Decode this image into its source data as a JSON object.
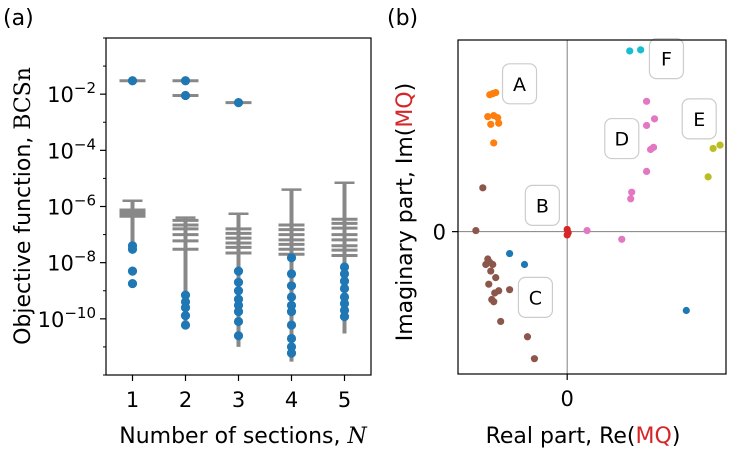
{
  "chart_data": [
    {
      "panel_label": "(a)",
      "type": "scatter",
      "subtype": "box-and-scatter, log y",
      "ylabel_prefix": "Objective function, ",
      "ylabel_math": "BCSn",
      "xlabel_prefix": "Number of sections, ",
      "xlabel_math": "N",
      "yscale": "log",
      "ylim": [
        1e-12,
        1
      ],
      "xlim": [
        0.5,
        5.5
      ],
      "x_ticks": [
        "1",
        "2",
        "3",
        "4",
        "5"
      ],
      "y_ticks": [
        {
          "value": 0.01,
          "base": "10",
          "exp": "−2"
        },
        {
          "value": 0.0001,
          "base": "10",
          "exp": "−4"
        },
        {
          "value": 1e-06,
          "base": "10",
          "exp": "−6"
        },
        {
          "value": 1e-08,
          "base": "10",
          "exp": "−8"
        },
        {
          "value": 1e-10,
          "base": "10",
          "exp": "−10"
        }
      ],
      "line_color": "#888888",
      "point_color": "#1f77b4",
      "groups": [
        {
          "x": 1,
          "whisker": [
            3e-08,
            1.6e-06
          ],
          "box_lines": [
            4.5e-07,
            5.5e-07,
            6.5e-07,
            7.5e-07
          ],
          "caps": [
            0.03
          ],
          "points": [
            0.03,
            4e-08,
            3e-08,
            5e-09,
            1.8e-09
          ]
        },
        {
          "x": 2,
          "whisker": [
            8e-11,
            4e-07
          ],
          "box_lines": [
            3.2e-07,
            2.2e-07,
            1.6e-07,
            1e-07,
            6e-08,
            3e-08
          ],
          "caps": [
            0.03,
            0.009
          ],
          "points": [
            0.03,
            0.009,
            7e-10,
            4e-10,
            2.5e-10,
            1.3e-10,
            6e-11
          ]
        },
        {
          "x": 3,
          "whisker": [
            1e-11,
            5.5e-07
          ],
          "box_lines": [
            1.6e-07,
            1.1e-07,
            7.5e-08,
            5e-08,
            3.5e-08,
            2.2e-08
          ],
          "caps": [
            0.005
          ],
          "points": [
            0.005,
            5e-09,
            2e-09,
            1e-09,
            5e-10,
            3e-10,
            1.8e-10,
            8e-11,
            2.5e-11
          ]
        },
        {
          "x": 4,
          "whisker": [
            3e-12,
            4e-06
          ],
          "box_lines": [
            2.2e-07,
            1.5e-07,
            1e-07,
            6.5e-08,
            4.5e-08,
            3e-08,
            2e-08
          ],
          "caps": [],
          "points": [
            1.5e-08,
            4e-09,
            1.5e-09,
            6e-10,
            3e-10,
            1.8e-10,
            6e-11,
            2e-11,
            1e-11,
            6e-12
          ]
        },
        {
          "x": 5,
          "whisker": [
            3e-11,
            7e-06
          ],
          "box_lines": [
            3.5e-07,
            2.5e-07,
            1.7e-07,
            1e-07,
            6.5e-08,
            4e-08,
            2.8e-08,
            1.8e-08
          ],
          "caps": [],
          "points": [
            7e-09,
            4e-09,
            2.2e-09,
            1.2e-09,
            6e-10,
            3.5e-10,
            2e-10,
            1.2e-10
          ]
        }
      ]
    },
    {
      "panel_label": "(b)",
      "type": "scatter",
      "xlabel_prefix": "Real part, Re(",
      "xlabel_mq": "MQ",
      "xlabel_suffix": ")",
      "ylabel_prefix": "Imaginary part, Im(",
      "ylabel_mq": "MQ",
      "ylabel_suffix": ")",
      "mq_color": "#d62728",
      "x_tick": "0",
      "y_tick": "0",
      "xlim": [
        -1.1,
        1.6
      ],
      "ylim": [
        -1.3,
        1.75
      ],
      "clusters": [
        {
          "label": "A",
          "color": "#ff7f0e",
          "label_pos": [
            -0.48,
            1.35
          ],
          "points": [
            [
              -0.78,
              1.25
            ],
            [
              -0.75,
              1.26
            ],
            [
              -0.72,
              1.27
            ],
            [
              -0.8,
              1.05
            ],
            [
              -0.74,
              1.06
            ],
            [
              -0.7,
              1.04
            ],
            [
              -0.77,
              0.98
            ],
            [
              -0.69,
              0.99
            ],
            [
              -0.74,
              0.81
            ]
          ]
        },
        {
          "label": "B",
          "color": "#d62728",
          "label_pos": [
            -0.25,
            0.24
          ],
          "points": [
            [
              0.0,
              0.02
            ],
            [
              0.01,
              -0.01
            ],
            [
              0.0,
              -0.03
            ]
          ]
        },
        {
          "label": "C",
          "color": "#8c564b",
          "label_pos": [
            -0.32,
            -0.6
          ],
          "points": [
            [
              -0.85,
              0.4
            ],
            [
              -0.92,
              0.01
            ],
            [
              -0.8,
              -0.25
            ],
            [
              -0.78,
              -0.28
            ],
            [
              -0.75,
              -0.3
            ],
            [
              -0.82,
              -0.3
            ],
            [
              -0.77,
              -0.36
            ],
            [
              -0.72,
              -0.42
            ],
            [
              -0.79,
              -0.48
            ],
            [
              -0.73,
              -0.56
            ],
            [
              -0.69,
              -0.54
            ],
            [
              -0.76,
              -0.62
            ],
            [
              -0.74,
              -0.64
            ],
            [
              -0.58,
              -0.53
            ],
            [
              -0.67,
              -0.82
            ],
            [
              -0.4,
              -0.96
            ],
            [
              -0.33,
              -1.16
            ]
          ]
        },
        {
          "label": "",
          "color": "#1f77b4",
          "label_pos": null,
          "points": [
            [
              -0.58,
              -0.2
            ],
            [
              -0.43,
              -0.3
            ],
            [
              1.2,
              -0.72
            ]
          ]
        },
        {
          "label": "D",
          "color": "#e377c2",
          "label_pos": [
            0.55,
            0.85
          ],
          "points": [
            [
              0.2,
              0.01
            ],
            [
              0.55,
              -0.07
            ],
            [
              0.8,
              1.19
            ],
            [
              0.88,
              1.03
            ],
            [
              0.8,
              0.97
            ],
            [
              0.87,
              0.77
            ],
            [
              0.84,
              0.75
            ],
            [
              0.62,
              0.87
            ],
            [
              0.8,
              0.55
            ],
            [
              0.65,
              0.36
            ],
            [
              0.64,
              0.3
            ]
          ]
        },
        {
          "label": "E",
          "color": "#bcbd22",
          "label_pos": [
            1.33,
            1.03
          ],
          "points": [
            [
              1.54,
              0.79
            ],
            [
              1.47,
              0.76
            ],
            [
              1.42,
              0.5
            ]
          ]
        },
        {
          "label": "F",
          "color": "#17becf",
          "label_pos": [
            1.0,
            1.58
          ],
          "points": [
            [
              0.63,
              1.65
            ],
            [
              0.74,
              1.66
            ]
          ]
        }
      ]
    }
  ]
}
